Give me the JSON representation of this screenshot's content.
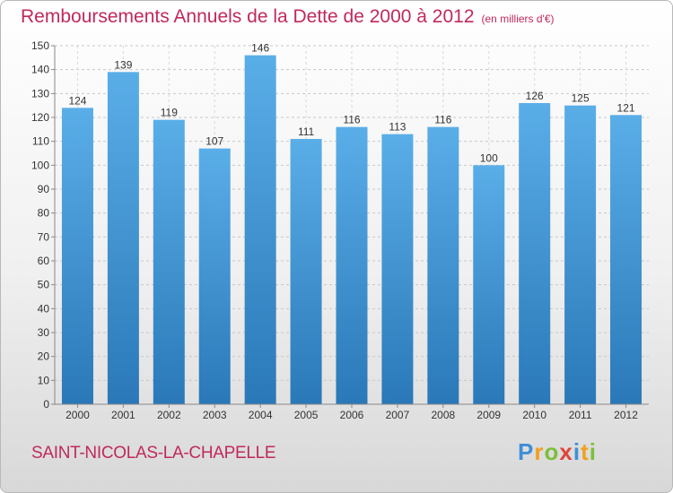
{
  "header": {
    "title": "Remboursements Annuels de la Dette de 2000 à 2012",
    "unit": "(en milliers d'€)"
  },
  "footer": {
    "city": "SAINT-NICOLAS-LA-CHAPELLE",
    "logo": "Proxiti"
  },
  "colors": {
    "title": "#c02a5a",
    "bar_top": "#5aaee8",
    "bar_bottom": "#2a78b8"
  },
  "chart_data": {
    "type": "bar",
    "title": "Remboursements Annuels de la Dette de 2000 à 2012",
    "xlabel": "",
    "ylabel": "",
    "categories": [
      "2000",
      "2001",
      "2002",
      "2003",
      "2004",
      "2005",
      "2006",
      "2007",
      "2008",
      "2009",
      "2010",
      "2011",
      "2012"
    ],
    "values": [
      124,
      139,
      119,
      107,
      146,
      111,
      116,
      113,
      116,
      100,
      126,
      125,
      121
    ],
    "ylim": [
      0,
      150
    ],
    "yticks": [
      0,
      10,
      20,
      30,
      40,
      50,
      60,
      70,
      80,
      90,
      100,
      110,
      120,
      130,
      140,
      150
    ],
    "grid": true,
    "data_labels": true
  }
}
